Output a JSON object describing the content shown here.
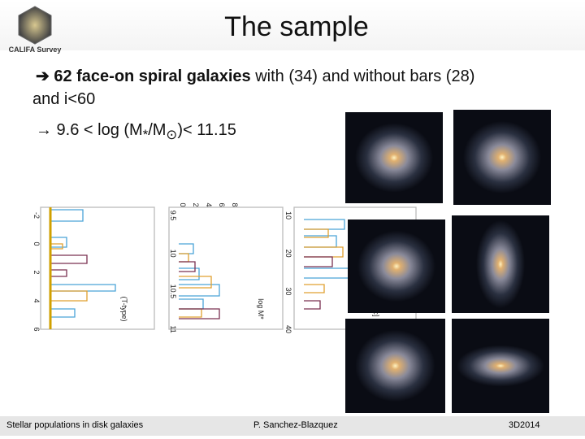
{
  "header": {
    "logo_text": "CALIFA Survey",
    "title": "The sample"
  },
  "bullets": [
    {
      "arrow": "➔",
      "bold": "62 face-on spiral galaxies",
      "rest": " with (34) and without bars (28)",
      "line2": "and i<60"
    },
    {
      "text": "→ 9.6 < log (M",
      "sub": "*",
      "mid": "/M",
      "sun": "⊙",
      "end": ")< 11.15"
    }
  ],
  "histograms": [
    {
      "ticks": [
        "-2",
        "0",
        "2",
        "4",
        "6"
      ],
      "top_ticks": [],
      "axis_label": "(T-type)"
    },
    {
      "ticks": [
        "9.5",
        "10",
        "10.5",
        "11"
      ],
      "top_ticks": [
        "0",
        "2",
        "4",
        "6",
        "8"
      ],
      "axis_label": "log M*"
    },
    {
      "ticks": [
        "10",
        "20",
        "30",
        "40"
      ],
      "top_ticks": [],
      "axis_label": "[kpc]"
    }
  ],
  "footer": {
    "left": "Stellar populations in disk galaxies",
    "center": "P. Sanchez-Blazquez",
    "right": "3D2014"
  }
}
